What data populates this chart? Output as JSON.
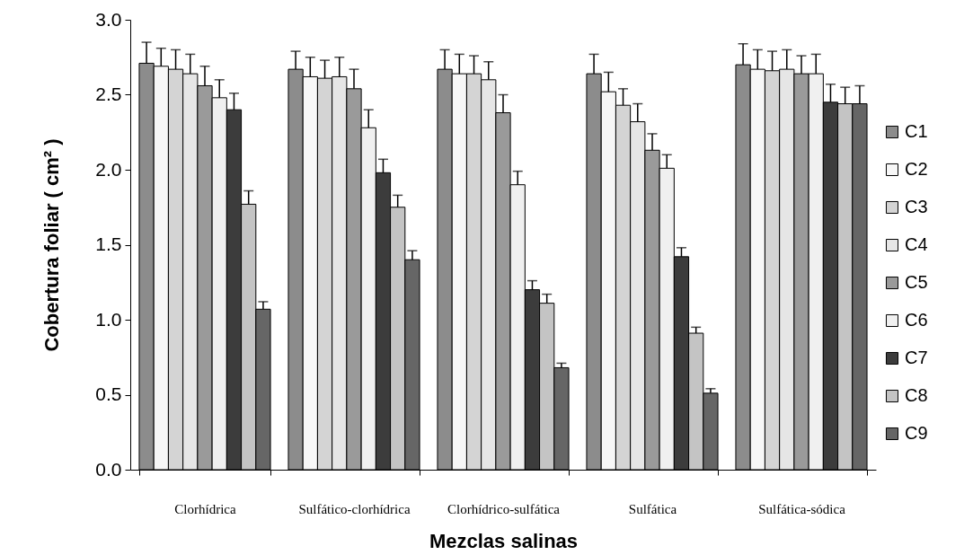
{
  "chart_data": {
    "type": "bar",
    "xlabel": "Mezclas salinas",
    "ylabel": "Cobertura  foliar ( cm² )",
    "categories": [
      "Clorhídrica",
      "Sulfático-clorhídrica",
      "Clorhídrico-sulfática",
      "Sulfática",
      "Sulfática-sódica"
    ],
    "ylim": [
      0,
      3
    ],
    "yticks": [
      {
        "value": 0,
        "label": "0.0"
      },
      {
        "value": 0.5,
        "label": "0.5"
      },
      {
        "value": 1,
        "label": "1.0"
      },
      {
        "value": 1.5,
        "label": "1.5"
      },
      {
        "value": 2,
        "label": "2.0"
      },
      {
        "value": 2.5,
        "label": "2.5"
      },
      {
        "value": 3,
        "label": "3.0"
      }
    ],
    "grid": false,
    "legend": "right",
    "series": [
      {
        "name": "C1",
        "color": "#8c8c8c",
        "values": [
          2.71,
          2.67,
          2.67,
          2.64,
          2.7
        ],
        "errors": [
          [
            2.71,
            2.85
          ],
          [
            2.67,
            2.79
          ],
          [
            2.67,
            2.8
          ],
          [
            2.64,
            2.77
          ],
          [
            2.7,
            2.84
          ]
        ]
      },
      {
        "name": "C2",
        "color": "#f7f7f7",
        "values": [
          2.69,
          2.62,
          2.64,
          2.52,
          2.67
        ],
        "errors": [
          [
            2.69,
            2.81
          ],
          [
            2.62,
            2.75
          ],
          [
            2.64,
            2.77
          ],
          [
            2.52,
            2.65
          ],
          [
            2.67,
            2.8
          ]
        ]
      },
      {
        "name": "C3",
        "color": "#d4d4d4",
        "values": [
          2.67,
          2.61,
          2.64,
          2.43,
          2.66
        ],
        "errors": [
          [
            2.67,
            2.8
          ],
          [
            2.61,
            2.73
          ],
          [
            2.64,
            2.76
          ],
          [
            2.43,
            2.54
          ],
          [
            2.66,
            2.79
          ]
        ]
      },
      {
        "name": "C4",
        "color": "#e6e6e6",
        "values": [
          2.64,
          2.62,
          2.6,
          2.32,
          2.67
        ],
        "errors": [
          [
            2.64,
            2.77
          ],
          [
            2.62,
            2.75
          ],
          [
            2.6,
            2.72
          ],
          [
            2.32,
            2.44
          ],
          [
            2.67,
            2.8
          ]
        ]
      },
      {
        "name": "C5",
        "color": "#9a9a9a",
        "values": [
          2.56,
          2.54,
          2.38,
          2.13,
          2.64
        ],
        "errors": [
          [
            2.56,
            2.69
          ],
          [
            2.54,
            2.67
          ],
          [
            2.38,
            2.5
          ],
          [
            2.13,
            2.24
          ],
          [
            2.64,
            2.76
          ]
        ]
      },
      {
        "name": "C6",
        "color": "#f0f0f0",
        "values": [
          2.48,
          2.28,
          1.9,
          2.01,
          2.64
        ],
        "errors": [
          [
            2.48,
            2.6
          ],
          [
            2.28,
            2.4
          ],
          [
            1.9,
            1.99
          ],
          [
            2.01,
            2.1
          ],
          [
            2.64,
            2.77
          ]
        ]
      },
      {
        "name": "C7",
        "color": "#3c3c3c",
        "values": [
          2.4,
          1.98,
          1.2,
          1.42,
          2.45
        ],
        "errors": [
          [
            2.4,
            2.51
          ],
          [
            1.98,
            2.07
          ],
          [
            1.2,
            1.26
          ],
          [
            1.42,
            1.48
          ],
          [
            2.45,
            2.57
          ]
        ]
      },
      {
        "name": "C8",
        "color": "#c4c4c4",
        "values": [
          1.77,
          1.75,
          1.11,
          0.91,
          2.44
        ],
        "errors": [
          [
            1.77,
            1.86
          ],
          [
            1.75,
            1.83
          ],
          [
            1.11,
            1.17
          ],
          [
            0.91,
            0.95
          ],
          [
            2.44,
            2.55
          ]
        ]
      },
      {
        "name": "C9",
        "color": "#666666",
        "values": [
          1.07,
          1.4,
          0.68,
          0.51,
          2.44
        ],
        "errors": [
          [
            1.07,
            1.12
          ],
          [
            1.4,
            1.46
          ],
          [
            0.68,
            0.71
          ],
          [
            0.51,
            0.54
          ],
          [
            2.44,
            2.56
          ]
        ]
      }
    ]
  }
}
